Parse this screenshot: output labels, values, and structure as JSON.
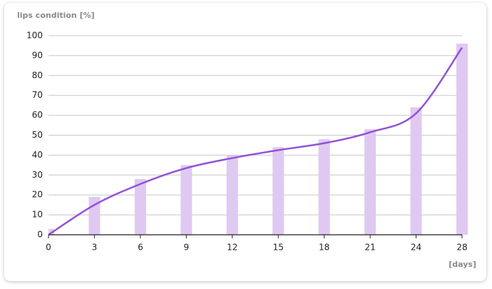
{
  "chart_data": {
    "type": "combo",
    "y_label": "lips condition [%]",
    "x_label": "[days]",
    "categories": [
      "0",
      "3",
      "6",
      "9",
      "12",
      "15",
      "18",
      "21",
      "24",
      "28"
    ],
    "series": [
      {
        "type": "bar",
        "color": "#dfc9f2",
        "values": [
          3,
          19,
          28,
          35,
          40,
          44,
          48,
          53,
          64,
          96
        ]
      },
      {
        "type": "line",
        "color": "#9352d6",
        "values": [
          0,
          15,
          25.5,
          33.5,
          38.5,
          42.5,
          46,
          51.5,
          61,
          94
        ]
      }
    ],
    "ylim": [
      0,
      100
    ],
    "yticks": [
      0,
      10,
      20,
      30,
      40,
      50,
      60,
      70,
      80,
      90,
      100
    ],
    "grid": true
  }
}
